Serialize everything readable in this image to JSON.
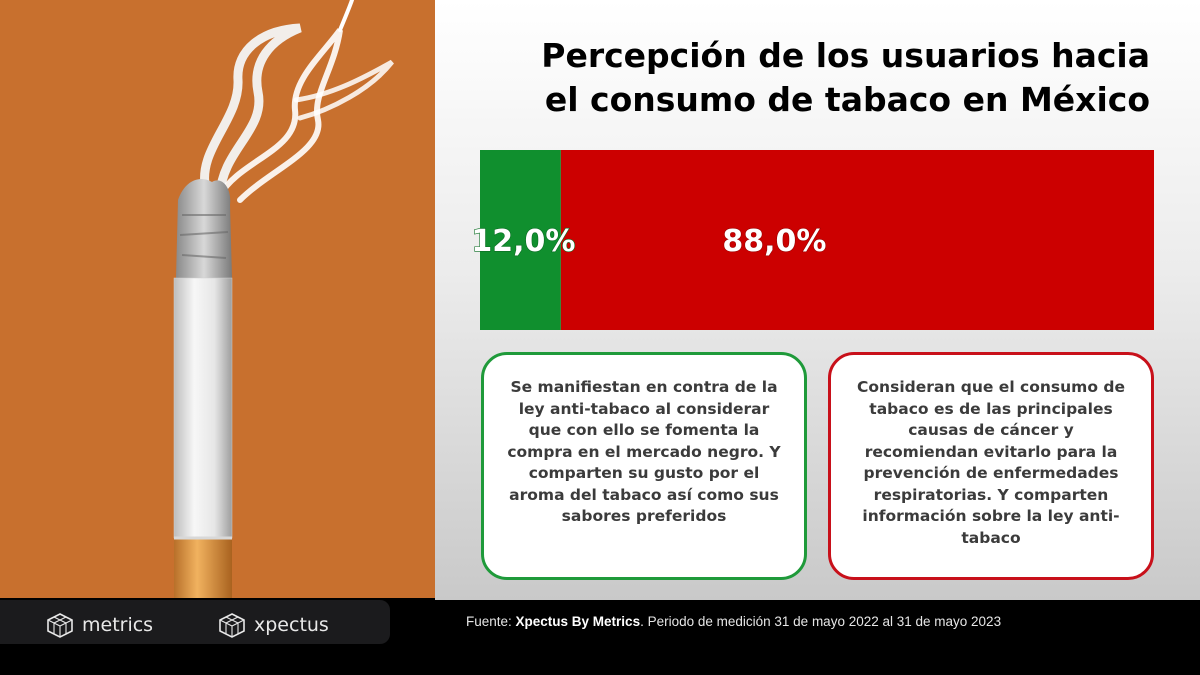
{
  "title": {
    "line1": "Percepción de los usuarios hacia",
    "line2": "el consumo de tabaco en México"
  },
  "chart_data": {
    "type": "bar",
    "orientation": "horizontal-stacked-100",
    "series": [
      {
        "value": 12.0,
        "label": "12,0%",
        "color": "#108f2e"
      },
      {
        "value": 88.0,
        "label": "88,0%",
        "color": "#cc0000"
      }
    ],
    "xlim": [
      0,
      100
    ]
  },
  "cards": {
    "left": {
      "text": "Se manifiestan en contra de la ley anti-tabaco al considerar que con ello se fomenta la compra en el mercado negro. Y comparten su gusto por el aroma del tabaco así como sus sabores preferidos",
      "border_color": "#1f9a3a"
    },
    "right": {
      "text": "Consideran que el consumo de tabaco es de las principales causas de cáncer y recomiendan evitarlo para la prevención de enfermedades respiratorias. Y comparten información sobre la ley anti-tabaco",
      "border_color": "#c8101a"
    }
  },
  "footer": {
    "brand1": "metrics",
    "brand2": "xpectus",
    "source_prefix": "Fuente: ",
    "source_brand": "Xpectus By Metrics",
    "source_rest": ". Periodo de medición 31 de mayo 2022 al 31 de mayo 2023",
    "logo_icon": "cube-grid-icon"
  },
  "photo": {
    "background": "#c8702e",
    "icon": "cigarette-smoke-image"
  }
}
